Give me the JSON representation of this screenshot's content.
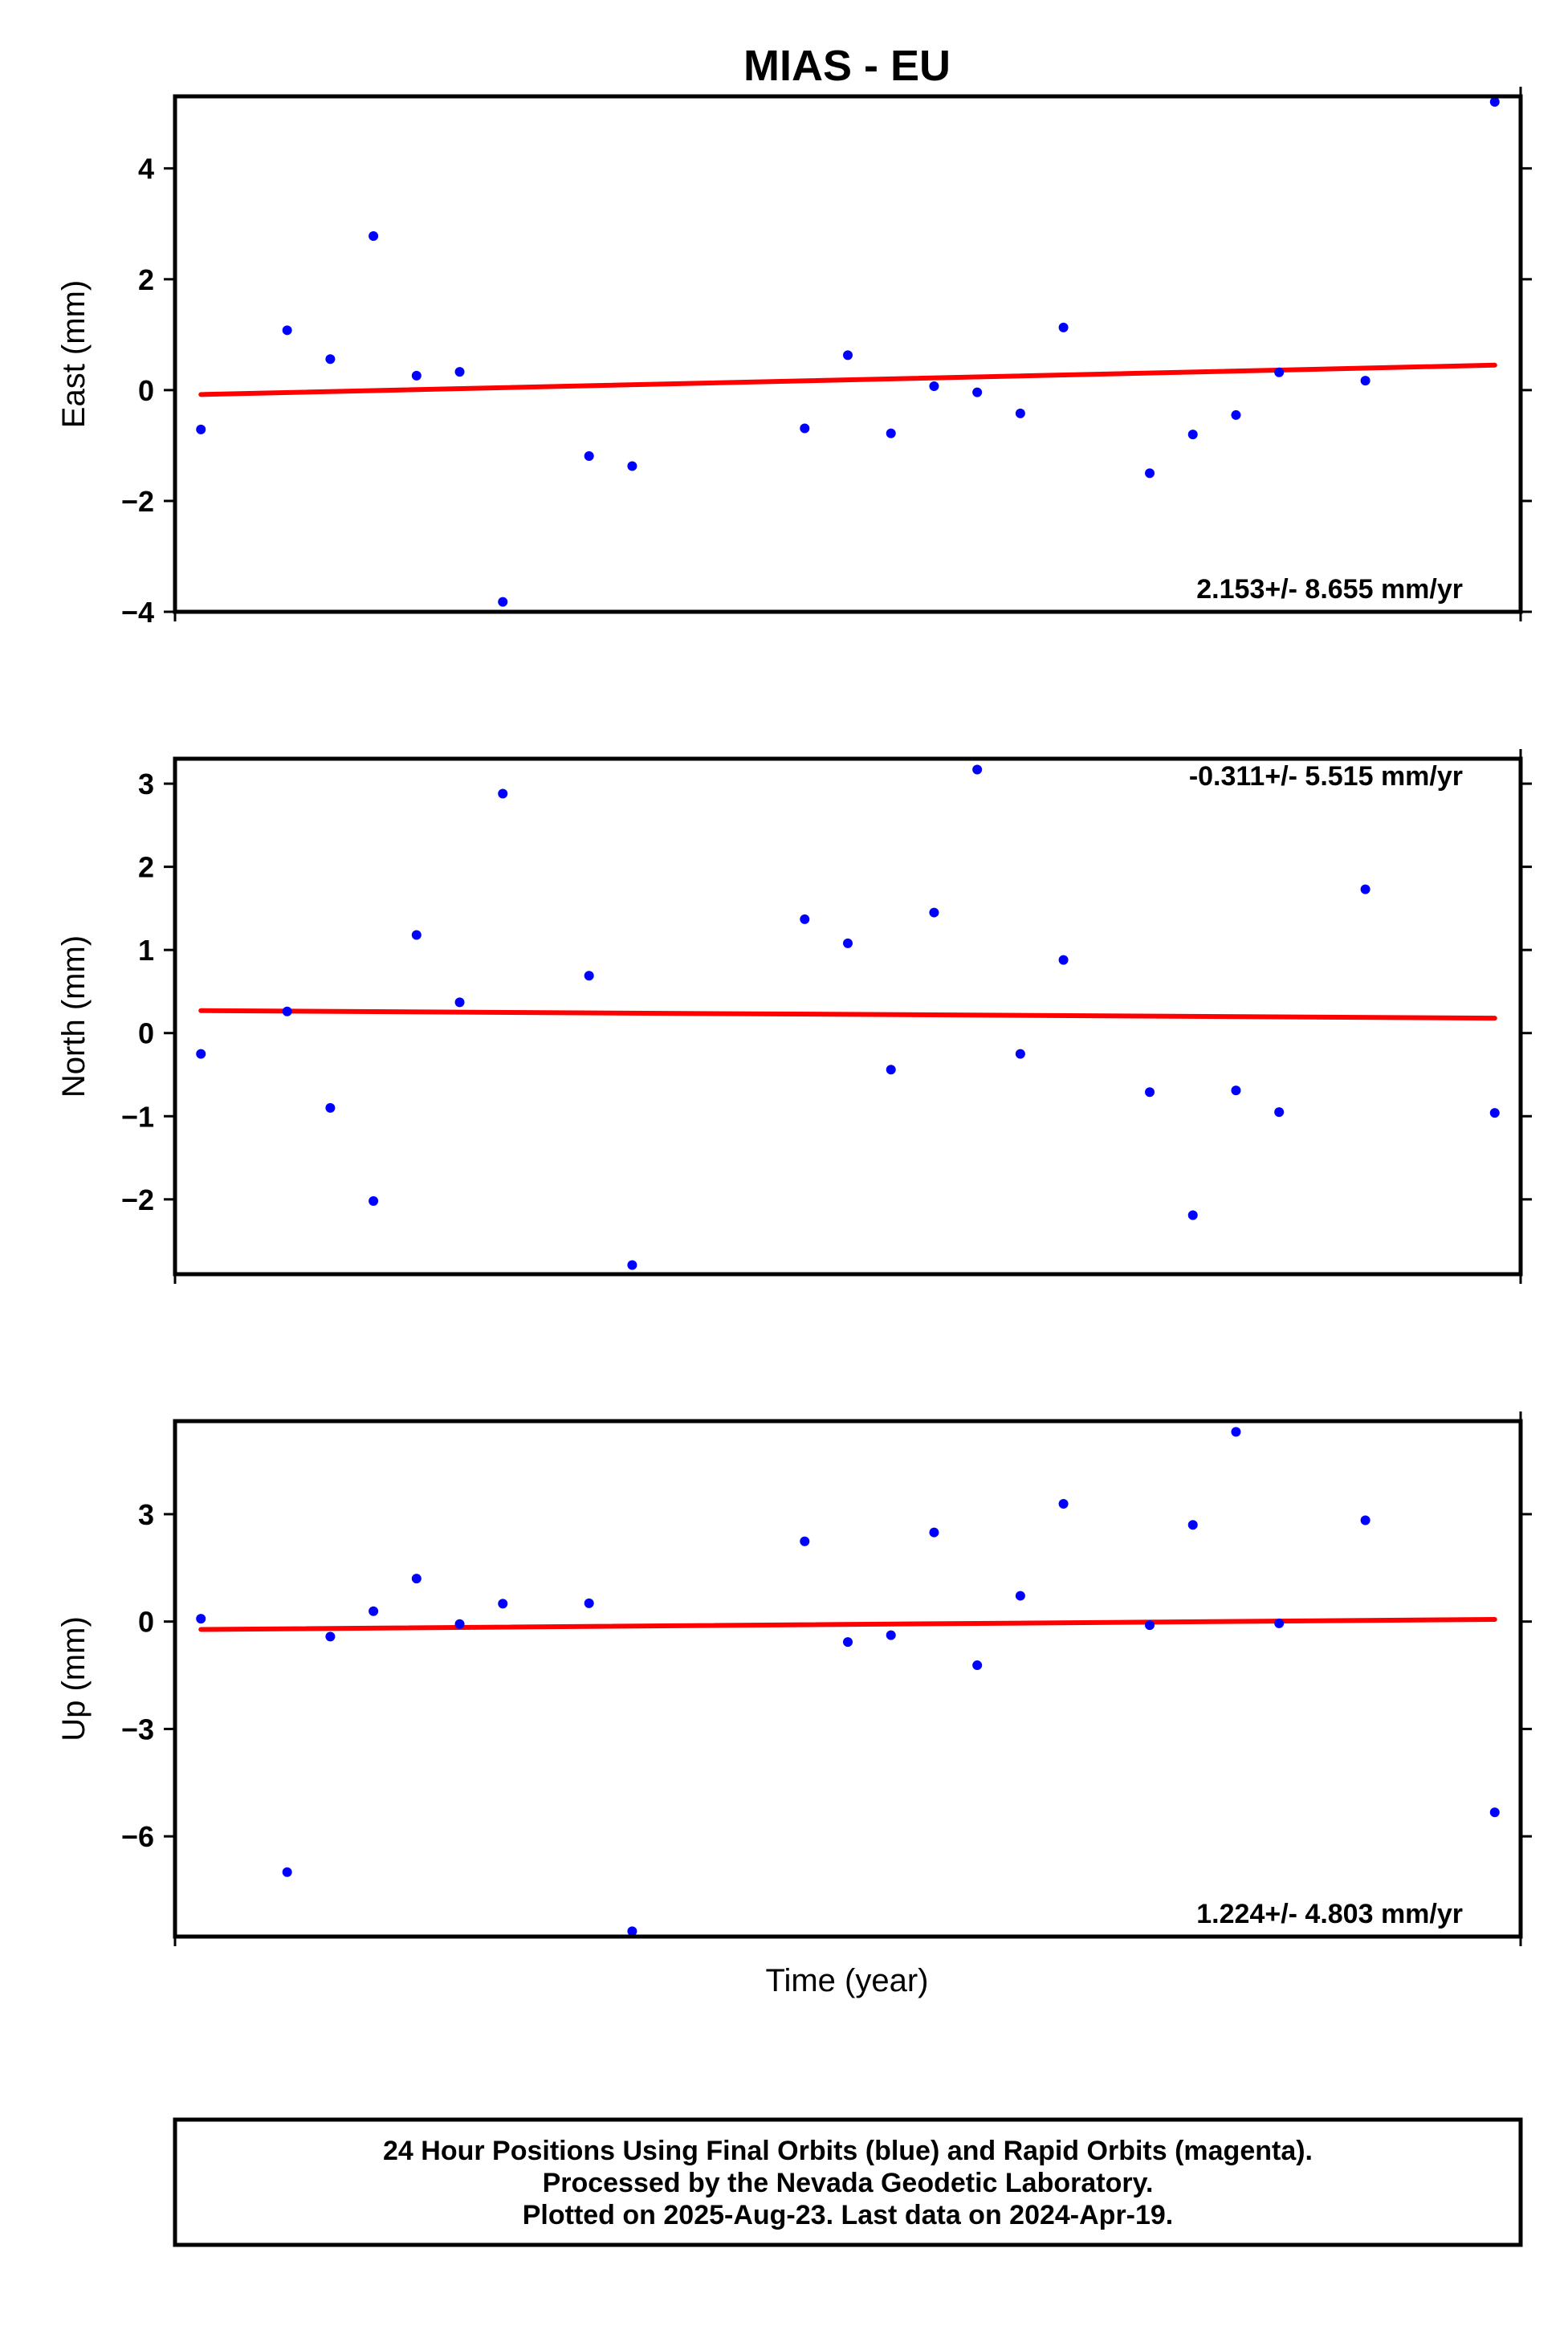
{
  "colors": {
    "points": "#0000ff",
    "trend": "#ff0000",
    "frame": "#000000"
  },
  "chart_data": [
    {
      "type": "scatter",
      "title": "MIAS - EU",
      "xlabel": "",
      "ylabel": "East (mm)",
      "ylim": [
        -4,
        5.3
      ],
      "yticks": [
        -4,
        -2,
        0,
        2,
        4
      ],
      "xlim": [
        -0.6,
        30.6
      ],
      "grid": false,
      "annotation": "2.153+/- 8.655 mm/yr",
      "annotation_position": "bottom-right",
      "series": [
        {
          "x": [
            0,
            2,
            3,
            4,
            5,
            6,
            7,
            9,
            10,
            14,
            15,
            16,
            17,
            18,
            19,
            20,
            22,
            23,
            24,
            25,
            27,
            30
          ],
          "y": [
            -0.71,
            1.08,
            0.56,
            2.78,
            0.26,
            0.33,
            -3.82,
            -1.19,
            -1.37,
            -0.69,
            0.63,
            -0.78,
            0.07,
            -0.04,
            -0.42,
            1.13,
            -1.5,
            -0.8,
            -0.45,
            0.32,
            0.17,
            5.2
          ]
        }
      ],
      "trend": {
        "x": [
          0,
          30
        ],
        "y": [
          -0.08,
          0.45
        ]
      }
    },
    {
      "type": "scatter",
      "title": "",
      "xlabel": "",
      "ylabel": "North (mm)",
      "ylim": [
        -2.9,
        3.3
      ],
      "yticks": [
        -2,
        -1,
        0,
        1,
        2,
        3
      ],
      "xlim": [
        -0.6,
        30.6
      ],
      "grid": false,
      "annotation": "-0.311+/- 5.515 mm/yr",
      "annotation_position": "top-right",
      "series": [
        {
          "x": [
            0,
            2,
            3,
            4,
            5,
            6,
            7,
            9,
            10,
            14,
            15,
            16,
            17,
            18,
            19,
            20,
            22,
            23,
            24,
            25,
            27,
            30
          ],
          "y": [
            -0.25,
            0.26,
            -0.9,
            -2.02,
            1.18,
            0.37,
            2.88,
            0.69,
            -2.79,
            1.37,
            1.08,
            -0.44,
            1.45,
            3.17,
            -0.25,
            0.88,
            -0.71,
            -2.19,
            -0.69,
            -0.95,
            1.73,
            -0.96
          ]
        }
      ],
      "trend": {
        "x": [
          0,
          30
        ],
        "y": [
          0.27,
          0.18
        ]
      }
    },
    {
      "type": "scatter",
      "title": "",
      "xlabel": "Time (year)",
      "ylabel": "Up (mm)",
      "ylim": [
        -8.8,
        5.6
      ],
      "yticks": [
        -6,
        -3,
        0,
        3
      ],
      "xlim": [
        -0.6,
        30.6
      ],
      "grid": false,
      "annotation": "1.224+/- 4.803 mm/yr",
      "annotation_position": "bottom-right",
      "series": [
        {
          "x": [
            0,
            2,
            3,
            4,
            5,
            6,
            7,
            9,
            10,
            14,
            15,
            16,
            17,
            18,
            19,
            20,
            22,
            23,
            24,
            25,
            27,
            30
          ],
          "y": [
            0.08,
            -7.0,
            -0.42,
            0.29,
            1.2,
            -0.07,
            0.5,
            0.51,
            -8.65,
            2.24,
            -0.57,
            -0.38,
            2.49,
            -1.22,
            0.72,
            3.29,
            -0.1,
            2.7,
            5.3,
            -0.05,
            2.83,
            -5.33
          ]
        }
      ],
      "trend": {
        "x": [
          0,
          30
        ],
        "y": [
          -0.22,
          0.06
        ]
      }
    }
  ],
  "footer": {
    "line1": "24 Hour Positions Using Final Orbits (blue) and Rapid Orbits (magenta).",
    "line2": "Processed by the Nevada Geodetic Laboratory.",
    "line3": "Plotted on 2025-Aug-23. Last data on 2024-Apr-19."
  }
}
